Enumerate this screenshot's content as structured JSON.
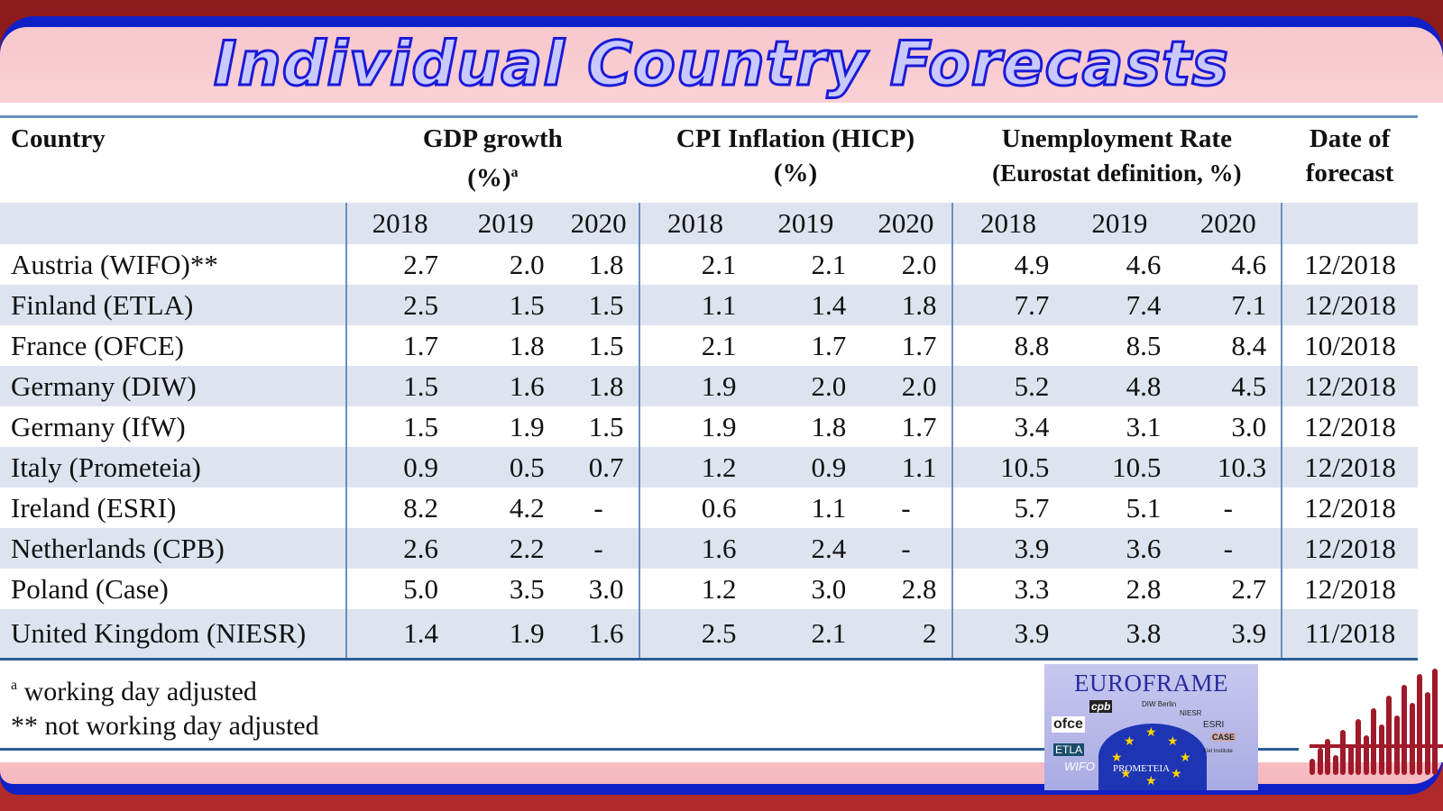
{
  "title": "Individual Country Forecasts",
  "colors": {
    "title_fill": "#c9c9ff",
    "title_stroke": "#1a1ad8",
    "frame_red": "#b22a2a",
    "frame_blue": "#1020c8",
    "band": "#dde4ef",
    "rule": "#2b5d95"
  },
  "table": {
    "headers": {
      "country": "Country",
      "gdp_line1": "GDP growth",
      "gdp_line2": "(%)",
      "gdp_sup": "a",
      "cpi_line1": "CPI Inflation (HICP)",
      "cpi_line2": "(%)",
      "unemp_line1": "Unemployment Rate",
      "unemp_line2": "(Eurostat definition, %)",
      "date_line1": "Date of",
      "date_line2": "forecast"
    },
    "years": [
      "2018",
      "2019",
      "2020"
    ],
    "rows": [
      {
        "country": "Austria (WIFO)**",
        "gdp": [
          "2.7",
          "2.0",
          "1.8"
        ],
        "cpi": [
          "2.1",
          "2.1",
          "2.0"
        ],
        "unemp": [
          "4.9",
          "4.6",
          "4.6"
        ],
        "date": "12/2018"
      },
      {
        "country": "Finland (ETLA)",
        "gdp": [
          "2.5",
          "1.5",
          "1.5"
        ],
        "cpi": [
          "1.1",
          "1.4",
          "1.8"
        ],
        "unemp": [
          "7.7",
          "7.4",
          "7.1"
        ],
        "date": "12/2018"
      },
      {
        "country": "France (OFCE)",
        "gdp": [
          "1.7",
          "1.8",
          "1.5"
        ],
        "cpi": [
          "2.1",
          "1.7",
          "1.7"
        ],
        "unemp": [
          "8.8",
          "8.5",
          "8.4"
        ],
        "date": "10/2018"
      },
      {
        "country": "Germany (DIW)",
        "gdp": [
          "1.5",
          "1.6",
          "1.8"
        ],
        "cpi": [
          "1.9",
          "2.0",
          "2.0"
        ],
        "unemp": [
          "5.2",
          "4.8",
          "4.5"
        ],
        "date": "12/2018"
      },
      {
        "country": "Germany (IfW)",
        "gdp": [
          "1.5",
          "1.9",
          "1.5"
        ],
        "cpi": [
          "1.9",
          "1.8",
          "1.7"
        ],
        "unemp": [
          "3.4",
          "3.1",
          "3.0"
        ],
        "date": "12/2018"
      },
      {
        "country": "Italy (Prometeia)",
        "gdp": [
          "0.9",
          "0.5",
          "0.7"
        ],
        "cpi": [
          "1.2",
          "0.9",
          "1.1"
        ],
        "unemp": [
          "10.5",
          "10.5",
          "10.3"
        ],
        "date": "12/2018"
      },
      {
        "country": "Ireland (ESRI)",
        "gdp": [
          "8.2",
          "4.2",
          "-"
        ],
        "cpi": [
          "0.6",
          "1.1",
          "-"
        ],
        "unemp": [
          "5.7",
          "5.1",
          "-"
        ],
        "date": "12/2018"
      },
      {
        "country": "Netherlands (CPB)",
        "gdp": [
          "2.6",
          "2.2",
          "-"
        ],
        "cpi": [
          "1.6",
          "2.4",
          "-"
        ],
        "unemp": [
          "3.9",
          "3.6",
          "-"
        ],
        "date": "12/2018"
      },
      {
        "country": "Poland (Case)",
        "gdp": [
          "5.0",
          "3.5",
          "3.0"
        ],
        "cpi": [
          "1.2",
          "3.0",
          "2.8"
        ],
        "unemp": [
          "3.3",
          "2.8",
          "2.7"
        ],
        "date": "12/2018"
      },
      {
        "country": "United Kingdom (NIESR)",
        "gdp": [
          "1.4",
          "1.9",
          "1.6"
        ],
        "cpi": [
          "2.5",
          "2.1",
          "2"
        ],
        "unemp": [
          "3.9",
          "3.8",
          "3.9"
        ],
        "date": "11/2018"
      }
    ]
  },
  "notes": {
    "note_a_sup": "a",
    "note_a": " working day adjusted",
    "note_b": "** not working day adjusted"
  },
  "logo": {
    "title": "EUROFRAME",
    "labels": [
      "cpb",
      "ofce",
      "ETLA",
      "WIFO",
      "PROMETEIA",
      "DIW Berlin",
      "NIESR",
      "ESRI",
      "CASE",
      "Kiel Institute"
    ]
  }
}
